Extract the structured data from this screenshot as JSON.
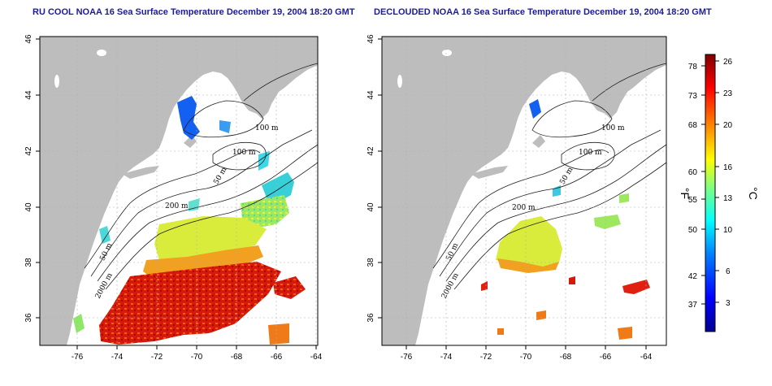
{
  "panels": [
    {
      "title": "RU COOL NOAA 16 Sea Surface Temperature December 19, 2004 18:20 GMT",
      "xticks": [
        "-76",
        "-74",
        "-72",
        "-70",
        "-68",
        "-66",
        "-64"
      ],
      "yticks": [
        "36",
        "38",
        "40",
        "42",
        "44",
        "46"
      ],
      "contour_labels": [
        "100 m",
        "100 m",
        "50 m",
        "200 m",
        "50 m",
        "2000 m"
      ]
    },
    {
      "title": "DECLOUDED NOAA 16 Sea Surface Temperature December 19, 2004 18:20 GMT",
      "xticks": [
        "-76",
        "-74",
        "-72",
        "-70",
        "-68",
        "-66",
        "-64"
      ],
      "yticks": [
        "36",
        "38",
        "40",
        "42",
        "44",
        "46"
      ],
      "contour_labels": [
        "100 m",
        "100 m",
        "50 m",
        "200 m",
        "50 m",
        "2000 m"
      ]
    }
  ],
  "colorbar": {
    "fahrenheit_label": "°F",
    "celsius_label": "°C",
    "fahrenheit_ticks": [
      "78",
      "73",
      "68",
      "60",
      "55",
      "50",
      "42",
      "37"
    ],
    "celsius_ticks": [
      "26",
      "23",
      "20",
      "16",
      "13",
      "10",
      "6",
      "3"
    ],
    "range_celsius": [
      0,
      27
    ],
    "colors": [
      "#00008f",
      "#0000ff",
      "#0080ff",
      "#00ffff",
      "#80ff80",
      "#ffff00",
      "#ff8000",
      "#ff0000",
      "#800000"
    ]
  },
  "colors": {
    "land": "#bdbdbd",
    "grid": "#b0b0b0",
    "title": "#1a1a9c"
  }
}
